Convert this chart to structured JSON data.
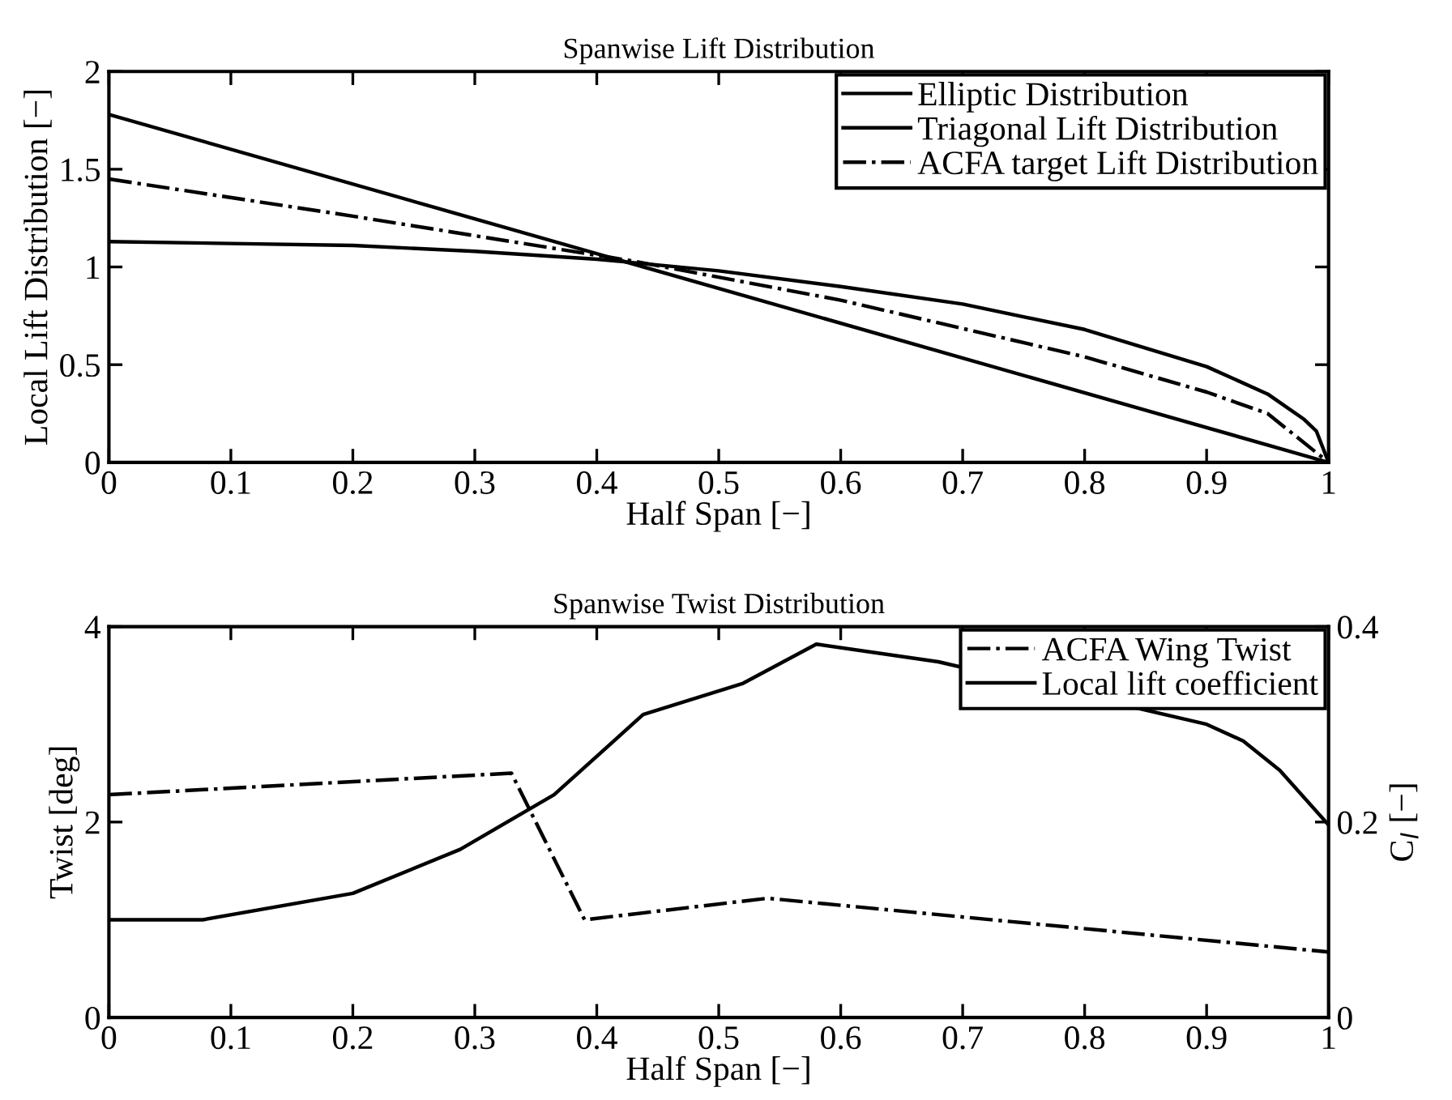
{
  "chart_data": [
    {
      "type": "line",
      "title": "Spanwise Lift Distribution",
      "xlabel": "Half Span [−]",
      "ylabel": "Local Lift Distribution [−]",
      "xlim": [
        0,
        1
      ],
      "ylim": [
        0,
        2
      ],
      "xticks": [
        0,
        0.1,
        0.2,
        0.3,
        0.4,
        0.5,
        0.6,
        0.7,
        0.8,
        0.9,
        1
      ],
      "yticks": [
        0,
        0.5,
        1,
        1.5,
        2
      ],
      "legend": "top right",
      "grid": false,
      "series": [
        {
          "name": "Elliptic Distribution",
          "color": "#000000",
          "line_style": "solid",
          "x": [
            0,
            0.1,
            0.2,
            0.3,
            0.4,
            0.5,
            0.6,
            0.7,
            0.8,
            0.9,
            0.95,
            0.98,
            0.99,
            1
          ],
          "values": [
            1.13,
            1.12,
            1.11,
            1.08,
            1.04,
            0.98,
            0.9,
            0.81,
            0.68,
            0.49,
            0.35,
            0.22,
            0.16,
            0
          ]
        },
        {
          "name": "Triagonal Lift Distribution",
          "color": "#000000",
          "line_style": "solid",
          "x": [
            0,
            1
          ],
          "values": [
            1.78,
            0
          ]
        },
        {
          "name": "ACFA target Lift Distribution",
          "color": "#000000",
          "line_style": "dashdot",
          "x": [
            0,
            0.2,
            0.43,
            0.6,
            0.8,
            0.9,
            0.95,
            1
          ],
          "values": [
            1.45,
            1.26,
            1.03,
            0.83,
            0.54,
            0.36,
            0.25,
            0
          ]
        }
      ]
    },
    {
      "type": "line",
      "title": "Spanwise Twist Distribution",
      "xlabel": "Half Span [−]",
      "ylabel": "Twist [deg]",
      "y2label": "C$_{l}$ [−]",
      "xlim": [
        0,
        1
      ],
      "ylim": [
        0,
        4
      ],
      "y2lim": [
        0,
        0.4
      ],
      "xticks": [
        0,
        0.1,
        0.2,
        0.3,
        0.4,
        0.5,
        0.6,
        0.7,
        0.8,
        0.9,
        1
      ],
      "yticks": [
        0,
        2,
        4
      ],
      "y2ticks": [
        0,
        0.2,
        0.4
      ],
      "legend": "top right",
      "grid": false,
      "series": [
        {
          "name": "ACFA Wing Twist",
          "color": "#000000",
          "line_style": "dashdot",
          "axis": "y",
          "x": [
            0,
            0.33,
            0.39,
            0.54,
            1
          ],
          "values": [
            2.28,
            2.5,
            1.0,
            1.22,
            0.67
          ]
        },
        {
          "name": "Local lift coefficient",
          "color": "#000000",
          "line_style": "solid",
          "axis": "y2",
          "x": [
            0,
            0.077,
            0.2,
            0.288,
            0.365,
            0.438,
            0.52,
            0.58,
            0.68,
            0.9,
            0.93,
            0.96,
            1
          ],
          "values": [
            0.1,
            0.1,
            0.127,
            0.172,
            0.228,
            0.31,
            0.342,
            0.382,
            0.364,
            0.3,
            0.283,
            0.253,
            0.197
          ]
        }
      ]
    }
  ]
}
